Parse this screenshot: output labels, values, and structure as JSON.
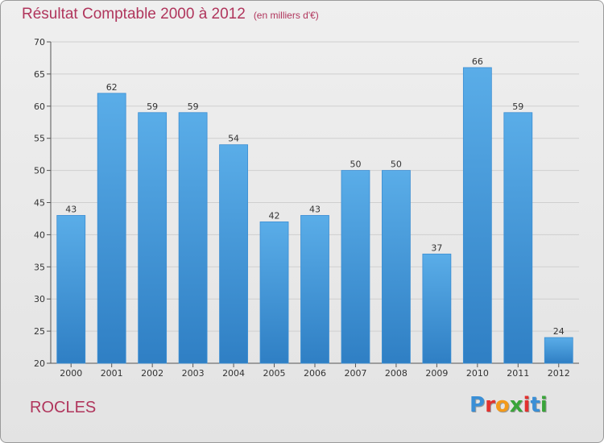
{
  "header": {
    "title": "Résultat Comptable 2000 à 2012",
    "unit": "(en milliers d'€)"
  },
  "footer": {
    "commune": "ROCLES",
    "logo_text": "Proxiti",
    "logo_colors": [
      "#3a8fd6",
      "#e2312f",
      "#f39a1b",
      "#3aa53a",
      "#e2312f",
      "#3a8fd6",
      "#3aa53a"
    ]
  },
  "chart_data": {
    "type": "bar",
    "categories": [
      "2000",
      "2001",
      "2002",
      "2003",
      "2004",
      "2005",
      "2006",
      "2007",
      "2008",
      "2009",
      "2010",
      "2011",
      "2012"
    ],
    "values": [
      43,
      62,
      59,
      59,
      54,
      42,
      43,
      50,
      50,
      37,
      66,
      59,
      24
    ],
    "ylim": [
      20,
      70
    ],
    "yticks": [
      20,
      25,
      30,
      35,
      40,
      45,
      50,
      55,
      60,
      65,
      70
    ],
    "grid": true,
    "bar_color": "#4a9fdf"
  }
}
